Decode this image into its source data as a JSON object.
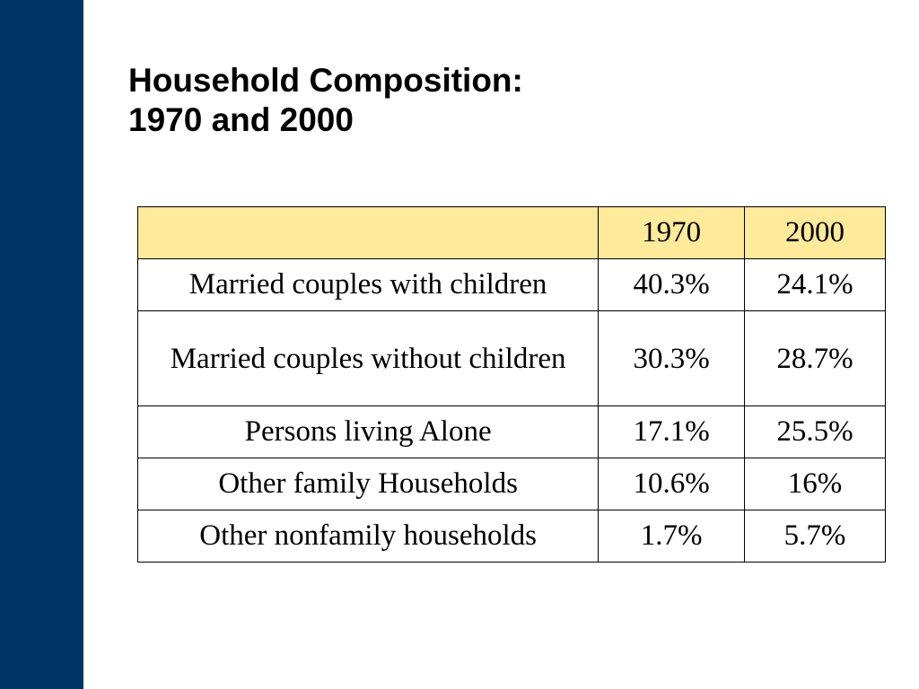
{
  "slide": {
    "title_line1": "Household Composition:",
    "title_line2": "1970 and 2000",
    "accent_color": "#003366",
    "header_fill": "#ffe99a"
  },
  "table": {
    "header": {
      "label": "",
      "col1": "1970",
      "col2": "2000"
    },
    "rows": [
      {
        "label": "Married couples with children",
        "v1970": "40.3%",
        "v2000": "24.1%"
      },
      {
        "label": "Married couples without children",
        "v1970": "30.3%",
        "v2000": "28.7%"
      },
      {
        "label": "Persons living Alone",
        "v1970": "17.1%",
        "v2000": "25.5%"
      },
      {
        "label": "Other family Households",
        "v1970": "10.6%",
        "v2000": "16%"
      },
      {
        "label": "Other nonfamily households",
        "v1970": "1.7%",
        "v2000": "5.7%"
      }
    ]
  }
}
